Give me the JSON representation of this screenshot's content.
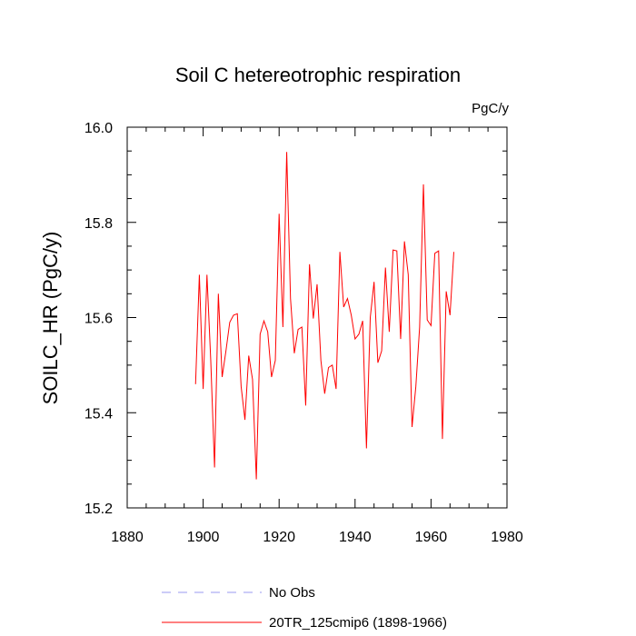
{
  "chart_data": {
    "type": "line",
    "title": "Soil C hetereotrophic respiration",
    "units": "PgC/y",
    "xlabel": "",
    "ylabel": "SOILC_HR  (PgC/y)",
    "xlim": [
      1880,
      1980
    ],
    "ylim": [
      15.2,
      16.0
    ],
    "xticks": [
      "1880",
      "1900",
      "1920",
      "1940",
      "1960",
      "1980"
    ],
    "yticks": [
      "15.2",
      "15.4",
      "15.6",
      "15.8",
      "16.0"
    ],
    "legend_position": "bottom",
    "series": [
      {
        "name": "20TR_125cmip6 (1898-1966)",
        "color": "#ff0000",
        "style": "solid",
        "x": [
          1898,
          1899,
          1900,
          1901,
          1902,
          1903,
          1904,
          1905,
          1906,
          1907,
          1908,
          1909,
          1910,
          1911,
          1912,
          1913,
          1914,
          1915,
          1916,
          1917,
          1918,
          1919,
          1920,
          1921,
          1922,
          1923,
          1924,
          1925,
          1926,
          1927,
          1928,
          1929,
          1930,
          1931,
          1932,
          1933,
          1934,
          1935,
          1936,
          1937,
          1938,
          1939,
          1940,
          1941,
          1942,
          1943,
          1944,
          1945,
          1946,
          1947,
          1948,
          1949,
          1950,
          1951,
          1952,
          1953,
          1954,
          1955,
          1956,
          1957,
          1958,
          1959,
          1960,
          1961,
          1962,
          1963,
          1964,
          1965,
          1966
        ],
        "values": [
          15.46,
          15.69,
          15.45,
          15.69,
          15.51,
          15.285,
          15.65,
          15.475,
          15.53,
          15.59,
          15.605,
          15.608,
          15.455,
          15.385,
          15.52,
          15.47,
          15.26,
          15.565,
          15.593,
          15.57,
          15.475,
          15.51,
          15.818,
          15.58,
          15.948,
          15.64,
          15.525,
          15.575,
          15.58,
          15.415,
          15.712,
          15.598,
          15.67,
          15.51,
          15.44,
          15.495,
          15.5,
          15.45,
          15.738,
          15.622,
          15.64,
          15.605,
          15.555,
          15.565,
          15.593,
          15.325,
          15.6,
          15.675,
          15.505,
          15.53,
          15.705,
          15.57,
          15.742,
          15.74,
          15.555,
          15.76,
          15.69,
          15.37,
          15.455,
          15.58,
          15.88,
          15.595,
          15.583,
          15.735,
          15.74,
          15.345,
          15.655,
          15.605,
          15.738
        ]
      },
      {
        "name": "No Obs",
        "color": "#9a9af0",
        "style": "dashed",
        "x": [],
        "values": []
      }
    ]
  }
}
